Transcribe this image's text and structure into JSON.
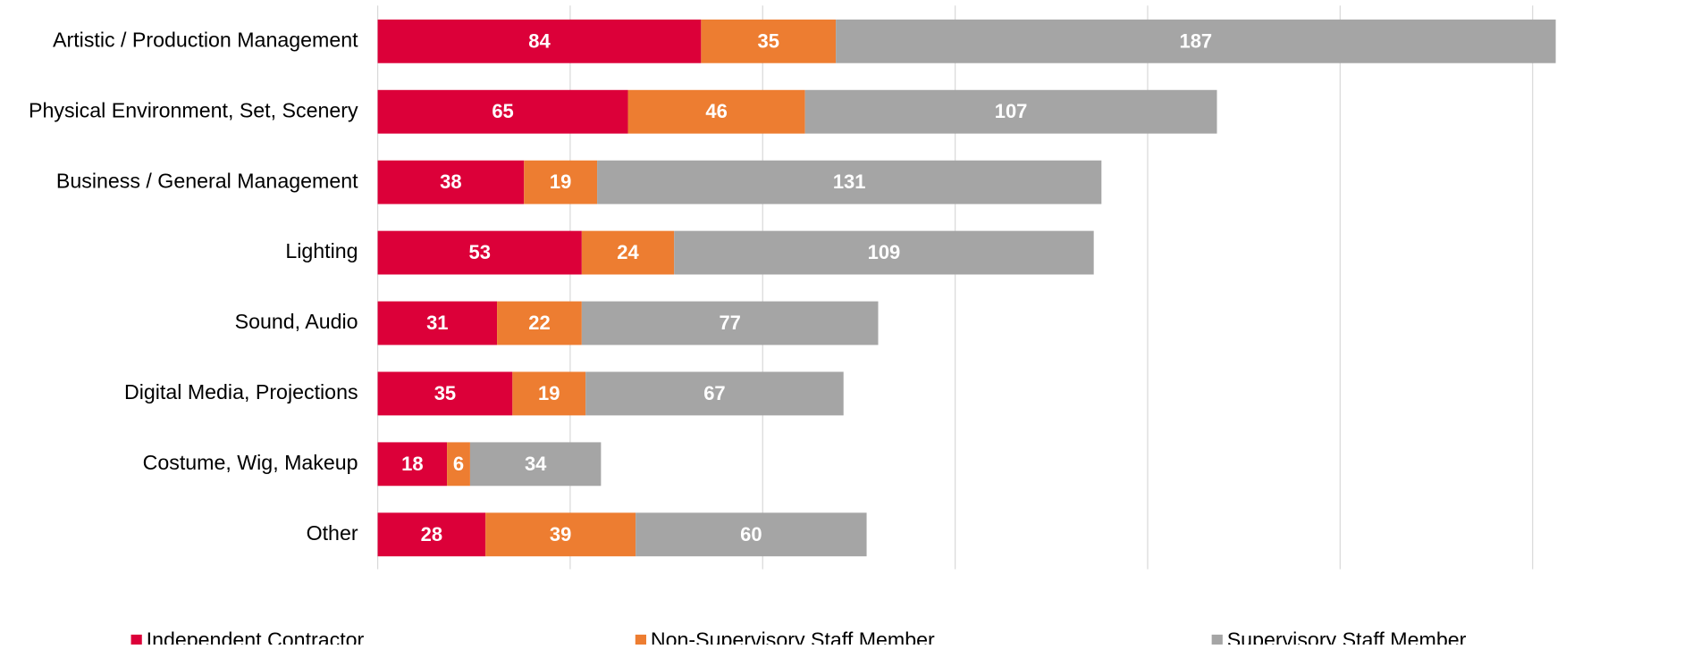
{
  "chart_data": {
    "type": "stacked_bar_horizontal",
    "categories": [
      "Artistic / Production Management",
      "Physical Environment, Set, Scenery",
      "Business / General Management",
      "Lighting",
      "Sound, Audio",
      "Digital Media, Projections",
      "Costume, Wig, Makeup",
      "Other"
    ],
    "series": [
      {
        "name": "Independent Contractor",
        "color": "#dc0039",
        "values": [
          84,
          65,
          38,
          53,
          31,
          35,
          18,
          28
        ]
      },
      {
        "name": "Non-Supervisory Staff Member",
        "color": "#ed7d31",
        "values": [
          35,
          46,
          19,
          24,
          22,
          19,
          6,
          39
        ]
      },
      {
        "name": "Supervisory Staff Member",
        "color": "#a5a5a5",
        "values": [
          187,
          107,
          131,
          109,
          77,
          67,
          34,
          60
        ]
      }
    ],
    "xlim": [
      0,
      300
    ],
    "xticks": [
      0,
      50,
      100,
      150,
      200,
      250,
      300
    ],
    "grid": true,
    "legend": "bottom"
  }
}
